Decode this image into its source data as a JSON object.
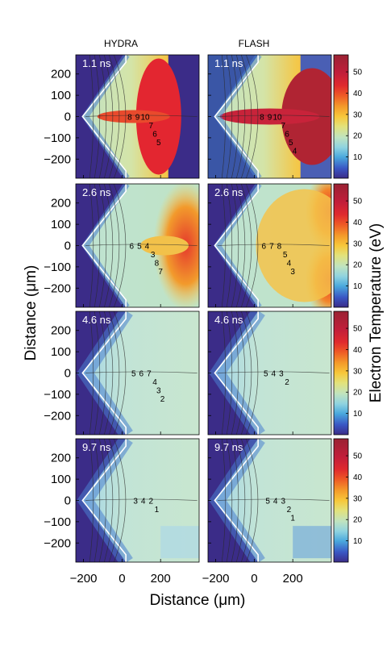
{
  "chart_data": {
    "type": "heatmap",
    "column_titles": [
      "HYDRA",
      "FLASH"
    ],
    "xlabel": "Distance (μm)",
    "ylabel": "Distance (μm)",
    "colorbar_label": "Electron Temperature (eV)",
    "x_ticks": [
      "−200",
      "0",
      "200"
    ],
    "y_ticks": [
      "200",
      "100",
      "0",
      "−100",
      "−200"
    ],
    "colorbar_ticks": [
      "50",
      "40",
      "30",
      "20",
      "10"
    ],
    "colorbar_range": [
      0,
      58
    ],
    "xlim": [
      -240,
      400
    ],
    "ylim": [
      -290,
      290
    ],
    "panels": [
      {
        "row": 0,
        "col": 0,
        "time": "1.1 ns",
        "contour_labels": [
          "8",
          "9",
          "10",
          "7",
          "6",
          "5"
        ]
      },
      {
        "row": 0,
        "col": 1,
        "time": "1.1 ns",
        "contour_labels": [
          "8",
          "9",
          "10",
          "7",
          "6",
          "5",
          "4"
        ]
      },
      {
        "row": 1,
        "col": 0,
        "time": "2.6 ns",
        "contour_labels": [
          "6",
          "5",
          "4",
          "3",
          "8",
          "7"
        ]
      },
      {
        "row": 1,
        "col": 1,
        "time": "2.6 ns",
        "contour_labels": [
          "6",
          "7",
          "8",
          "5",
          "4",
          "3"
        ]
      },
      {
        "row": 2,
        "col": 0,
        "time": "4.6 ns",
        "contour_labels": [
          "5",
          "6",
          "7",
          "4",
          "3",
          "2"
        ]
      },
      {
        "row": 2,
        "col": 1,
        "time": "4.6 ns",
        "contour_labels": [
          "5",
          "4",
          "3",
          "2"
        ]
      },
      {
        "row": 3,
        "col": 0,
        "time": "9.7 ns",
        "contour_labels": [
          "3",
          "4",
          "2",
          "1"
        ]
      },
      {
        "row": 3,
        "col": 1,
        "time": "9.7 ns",
        "contour_labels": [
          "5",
          "4",
          "3",
          "2",
          "1"
        ]
      }
    ]
  }
}
